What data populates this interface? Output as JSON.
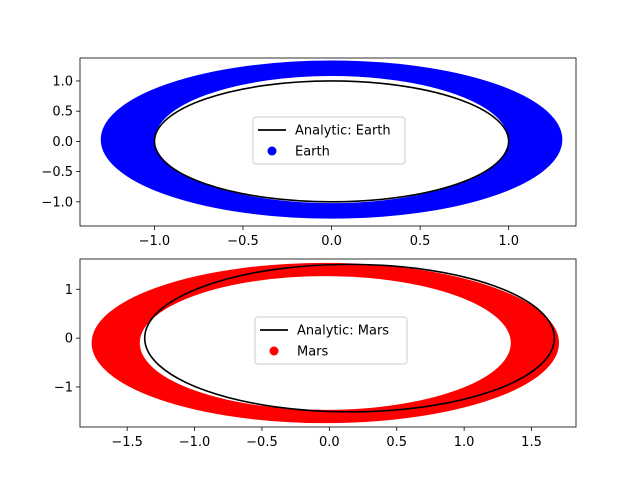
{
  "chart_data": [
    {
      "type": "scatter",
      "title": "",
      "xlabel": "",
      "ylabel": "",
      "xlim": [
        -1.42,
        1.38
      ],
      "ylim": [
        -1.4,
        1.38
      ],
      "xticks": [
        -1.0,
        -0.5,
        0.0,
        0.5,
        1.0
      ],
      "xtick_labels": [
        "−1.0",
        "−0.5",
        "0.0",
        "0.5",
        "1.0"
      ],
      "yticks": [
        1.0,
        0.5,
        0.0,
        -0.5,
        -1.0
      ],
      "ytick_labels": [
        "1.0",
        "0.5",
        "0.0",
        "−0.5",
        "−1.0"
      ],
      "grid": false,
      "legend_position": "center",
      "series": [
        {
          "name": "Analytic: Earth",
          "kind": "line",
          "color": "#000000",
          "orbit": {
            "center": [
              0.0,
              0.0
            ],
            "semi_major": 1.0,
            "semi_minor": 1.0
          }
        },
        {
          "name": "Earth",
          "kind": "scatter",
          "color": "#0000ff",
          "band": {
            "center": [
              0.0,
              0.03
            ],
            "inner_semi_axes": [
              1.0,
              1.06
            ],
            "outer_semi_axes": [
              1.3,
              1.3
            ]
          }
        }
      ]
    },
    {
      "type": "scatter",
      "title": "",
      "xlabel": "",
      "ylabel": "",
      "xlim": [
        -1.85,
        1.83
      ],
      "ylim": [
        -1.82,
        1.62
      ],
      "xticks": [
        -1.5,
        -1.0,
        -0.5,
        0.0,
        0.5,
        1.0,
        1.5
      ],
      "xtick_labels": [
        "−1.5",
        "−1.0",
        "−0.5",
        "0.0",
        "0.5",
        "1.0",
        "1.5"
      ],
      "yticks": [
        1,
        0,
        -1
      ],
      "ytick_labels": [
        "1",
        "0",
        "−1"
      ],
      "grid": false,
      "legend_position": "center",
      "series": [
        {
          "name": "Analytic: Mars",
          "kind": "line",
          "color": "#000000",
          "orbit": {
            "center": [
              0.15,
              0.0
            ],
            "semi_major": 1.52,
            "semi_minor": 1.51
          }
        },
        {
          "name": "Mars",
          "kind": "scatter",
          "color": "#ff0000",
          "band": {
            "center": [
              -0.03,
              -0.1
            ],
            "inner_semi_axes": [
              1.38,
              1.38
            ],
            "outer_semi_axes": [
              1.73,
              1.63
            ]
          }
        }
      ]
    }
  ]
}
